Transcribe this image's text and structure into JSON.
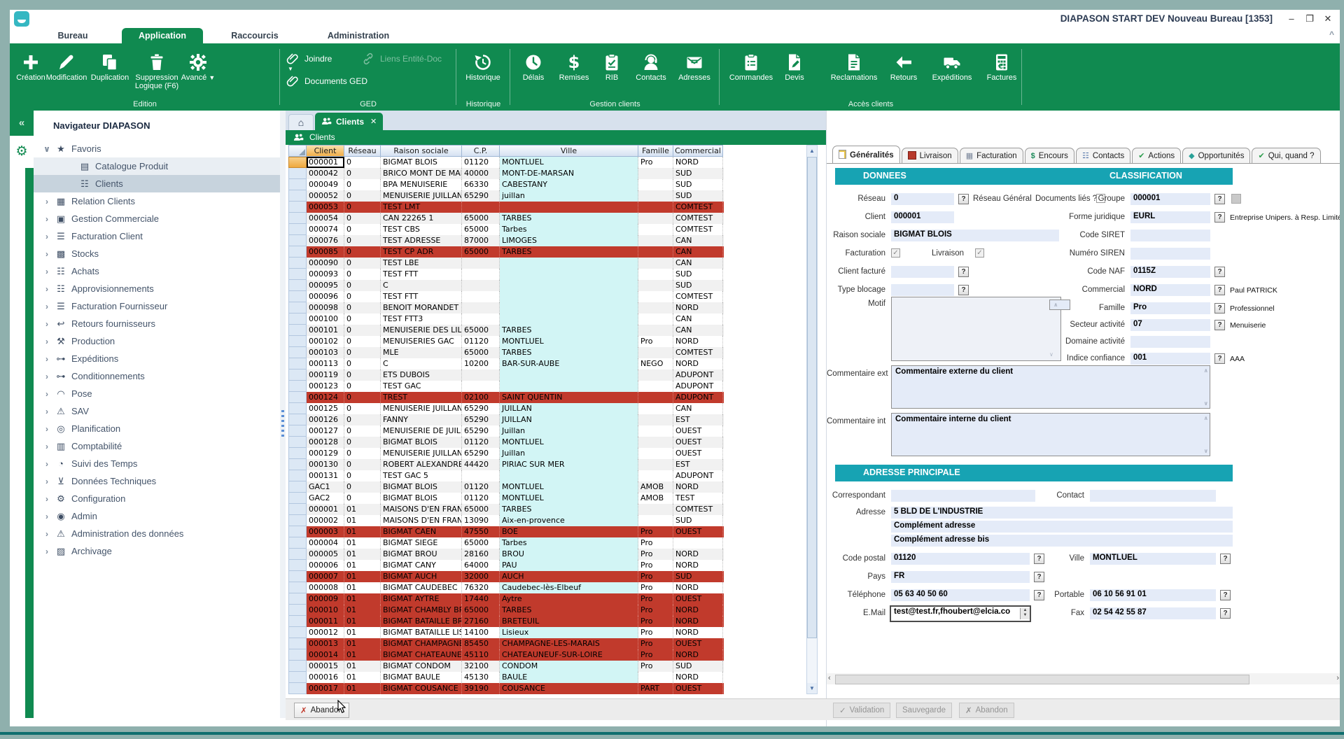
{
  "colors": {
    "green": "#108a50",
    "teal": "#17a3b3",
    "red": "#c13a2c",
    "desktop": "#8fb0ad",
    "field": "#e4ebf8",
    "ville": "#d2f5f5",
    "sort": "#f0ae49"
  },
  "window": {
    "title": "DIAPASON START DEV Nouveau Bureau [1353]",
    "minimize": "–",
    "restore": "❐",
    "close": "✕",
    "collapse_ribbon": "^"
  },
  "menu": {
    "items": [
      {
        "label": "Bureau",
        "active": false
      },
      {
        "label": "Application",
        "active": true
      },
      {
        "label": "Raccourcis",
        "active": false
      },
      {
        "label": "Administration",
        "active": false
      }
    ]
  },
  "ribbon": {
    "groups": [
      {
        "label": "Edition",
        "items": [
          {
            "label": "Création",
            "icon": "plus-icon",
            "kind": "big"
          },
          {
            "label": "Modification",
            "icon": "pencil-icon",
            "kind": "big"
          },
          {
            "label": "Duplication",
            "icon": "copy-icon",
            "kind": "big"
          },
          {
            "label": "Suppression\nLogique (F6)",
            "icon": "trash-icon",
            "kind": "big"
          },
          {
            "label": "Avancé",
            "icon": "gear-icon",
            "kind": "big",
            "caret": true
          }
        ]
      },
      {
        "label": "GED",
        "items": [
          {
            "label": "Joindre",
            "icon": "paperclip-icon",
            "kind": "small"
          },
          {
            "label": "Documents GED",
            "icon": "paperclip-icon",
            "kind": "small"
          },
          {
            "label": "Liens Entité-Doc",
            "icon": "link-icon",
            "kind": "small",
            "disabled": true
          }
        ]
      },
      {
        "label": "Historique",
        "items": [
          {
            "label": "Historique",
            "icon": "history-icon",
            "kind": "big"
          }
        ]
      },
      {
        "label": "Gestion clients",
        "items": [
          {
            "label": "Délais",
            "icon": "clock-icon",
            "kind": "big"
          },
          {
            "label": "Remises",
            "icon": "dollar-icon",
            "kind": "big"
          },
          {
            "label": "RIB",
            "icon": "clipboard-check-icon",
            "kind": "big"
          },
          {
            "label": "Contacts",
            "icon": "headset-icon",
            "kind": "big"
          },
          {
            "label": "Adresses",
            "icon": "envelope-icon",
            "kind": "big"
          }
        ]
      },
      {
        "label": "Accès clients",
        "items": [
          {
            "label": "Commandes",
            "icon": "clipboard-list-icon",
            "kind": "big"
          },
          {
            "label": "Devis",
            "icon": "doc-pencil-icon",
            "kind": "big"
          },
          {
            "label": "Reclamations",
            "icon": "doc-lines-icon",
            "kind": "big"
          },
          {
            "label": "Retours",
            "icon": "arrow-left-icon",
            "kind": "big"
          },
          {
            "label": "Expéditions",
            "icon": "truck-icon",
            "kind": "big"
          },
          {
            "label": "Factures",
            "icon": "calculator-euro-icon",
            "kind": "big"
          }
        ]
      }
    ]
  },
  "sidebar": {
    "title": "Navigateur DIAPASON",
    "collapse_glyph": "«",
    "items": [
      {
        "label": "Favoris",
        "icon": "star-icon",
        "level": 0,
        "chevron": "expanded"
      },
      {
        "label": "Catalogue Produit",
        "icon": "catalog-icon",
        "level": 1,
        "highlight": "soft"
      },
      {
        "label": "Clients",
        "icon": "people-icon",
        "level": 1,
        "highlight": "selected"
      },
      {
        "label": "Relation Clients",
        "icon": "calendar-icon",
        "level": 0,
        "chevron": "collapsed"
      },
      {
        "label": "Gestion Commerciale",
        "icon": "briefcase-icon",
        "level": 0,
        "chevron": "collapsed"
      },
      {
        "label": "Facturation Client",
        "icon": "calculator-icon",
        "level": 0,
        "chevron": "collapsed"
      },
      {
        "label": "Stocks",
        "icon": "stock-icon",
        "level": 0,
        "chevron": "collapsed"
      },
      {
        "label": "Achats",
        "icon": "cart-icon",
        "level": 0,
        "chevron": "collapsed"
      },
      {
        "label": "Approvisionnements",
        "icon": "supply-icon",
        "level": 0,
        "chevron": "collapsed"
      },
      {
        "label": "Facturation Fournisseur",
        "icon": "calculator-icon",
        "level": 0,
        "chevron": "collapsed"
      },
      {
        "label": "Retours fournisseurs",
        "icon": "return-icon",
        "level": 0,
        "chevron": "collapsed"
      },
      {
        "label": "Production",
        "icon": "hammer-icon",
        "level": 0,
        "chevron": "collapsed"
      },
      {
        "label": "Expéditions",
        "icon": "key-icon",
        "level": 0,
        "chevron": "collapsed"
      },
      {
        "label": "Conditionnements",
        "icon": "key-icon",
        "level": 0,
        "chevron": "collapsed"
      },
      {
        "label": "Pose",
        "icon": "helmet-icon",
        "level": 0,
        "chevron": "collapsed"
      },
      {
        "label": "SAV",
        "icon": "warning-icon",
        "level": 0,
        "chevron": "collapsed"
      },
      {
        "label": "Planification",
        "icon": "binoculars-icon",
        "level": 0,
        "chevron": "collapsed"
      },
      {
        "label": "Comptabilité",
        "icon": "chart-icon",
        "level": 0,
        "chevron": "collapsed"
      },
      {
        "label": "Suivi des Temps",
        "icon": "stopwatch-icon",
        "level": 0,
        "chevron": "collapsed"
      },
      {
        "label": "Données Techniques",
        "icon": "import-icon",
        "level": 0,
        "chevron": "collapsed"
      },
      {
        "label": "Configuration",
        "icon": "gear-tree-icon",
        "level": 0,
        "chevron": "collapsed"
      },
      {
        "label": "Admin",
        "icon": "admin-icon",
        "level": 0,
        "chevron": "collapsed"
      },
      {
        "label": "Administration des données",
        "icon": "warning-icon",
        "level": 0,
        "chevron": "collapsed"
      },
      {
        "label": "Archivage",
        "icon": "archive-icon",
        "level": 0,
        "chevron": "collapsed"
      }
    ]
  },
  "main": {
    "tab": {
      "label": "Clients",
      "close": "✕",
      "more": "»"
    },
    "bar_title": "Clients",
    "bar_icons": {
      "pin": "→|",
      "import": "⊻"
    }
  },
  "grid": {
    "columns": [
      "Client",
      "Réseau",
      "Raison sociale",
      "C.P.",
      "Ville",
      "Famille",
      "Commercial"
    ],
    "abandon_label": "Abandon",
    "rows": [
      [
        "000001",
        "0",
        "BIGMAT BLOIS",
        "01120",
        "MONTLUEL",
        "Pro",
        "NORD",
        "current"
      ],
      [
        "000042",
        "0",
        "BRICO MONT DE MARSA",
        "40000",
        "MONT-DE-MARSAN",
        "",
        "SUD",
        ""
      ],
      [
        "000049",
        "0",
        "BPA MENUISERIE",
        "66330",
        "CABESTANY",
        "",
        "SUD",
        ""
      ],
      [
        "000052",
        "0",
        "MENUISERIE JUILLAN",
        "65290",
        "juillan",
        "",
        "SUD",
        ""
      ],
      [
        "000053",
        "0",
        "TEST LMT",
        "",
        "",
        "",
        "COMTEST",
        "red"
      ],
      [
        "000054",
        "0",
        "CAN 22265 1",
        "65000",
        "TARBES",
        "",
        "COMTEST",
        ""
      ],
      [
        "000074",
        "0",
        "TEST CBS",
        "65000",
        "Tarbes",
        "",
        "COMTEST",
        ""
      ],
      [
        "000076",
        "0",
        "TEST ADRESSE",
        "87000",
        "LIMOGES",
        "",
        "CAN",
        ""
      ],
      [
        "000085",
        "0",
        "TEST CP ADR",
        "65000",
        "TARBES",
        "",
        "CAN",
        "red"
      ],
      [
        "000090",
        "0",
        "TEST LBE",
        "",
        "",
        "",
        "CAN",
        ""
      ],
      [
        "000093",
        "0",
        "TEST FTT",
        "",
        "",
        "",
        "SUD",
        ""
      ],
      [
        "000095",
        "0",
        "C",
        "",
        "",
        "",
        "SUD",
        ""
      ],
      [
        "000096",
        "0",
        "TEST FTT",
        "",
        "",
        "",
        "COMTEST",
        ""
      ],
      [
        "000098",
        "0",
        "BENOIT MORANDET",
        "",
        "",
        "",
        "NORD",
        ""
      ],
      [
        "000100",
        "0",
        "TEST FTT3",
        "",
        "",
        "",
        "CAN",
        ""
      ],
      [
        "000101",
        "0",
        "MENUISERIE DES LILAS",
        "65000",
        "TARBES",
        "",
        "CAN",
        ""
      ],
      [
        "000102",
        "0",
        "MENUISERIES GAC",
        "01120",
        "MONTLUEL",
        "Pro",
        "NORD",
        ""
      ],
      [
        "000103",
        "0",
        "MLE",
        "65000",
        "TARBES",
        "",
        "COMTEST",
        ""
      ],
      [
        "000113",
        "0",
        "C",
        "10200",
        "BAR-SUR-AUBE",
        "NEGO",
        "NORD",
        ""
      ],
      [
        "000119",
        "0",
        "ETS DUBOIS",
        "",
        "",
        "",
        "ADUPONT",
        ""
      ],
      [
        "000123",
        "0",
        "TEST GAC",
        "",
        "",
        "",
        "ADUPONT",
        ""
      ],
      [
        "000124",
        "0",
        "TREST",
        "02100",
        "SAINT QUENTIN",
        "",
        "ADUPONT",
        "red"
      ],
      [
        "000125",
        "0",
        "MENUISERIE JUILLANAIS",
        "65290",
        "JUILLAN",
        "",
        "CAN",
        ""
      ],
      [
        "000126",
        "0",
        "FANNY",
        "65290",
        "JUILLAN",
        "",
        "EST",
        ""
      ],
      [
        "000127",
        "0",
        "MENUISERIE DE JUILLAN",
        "65290",
        "Juillan",
        "",
        "OUEST",
        ""
      ],
      [
        "000128",
        "0",
        "BIGMAT BLOIS",
        "01120",
        "MONTLUEL",
        "",
        "OUEST",
        ""
      ],
      [
        "000129",
        "0",
        "MENUISERIE JUILLANAIS",
        "65290",
        "Juillan",
        "",
        "OUEST",
        ""
      ],
      [
        "000130",
        "0",
        "ROBERT ALEXANDRE ET",
        "44420",
        "PIRIAC SUR MER",
        "",
        "EST",
        ""
      ],
      [
        "000131",
        "0",
        "TEST GAC 5",
        "",
        "",
        "",
        "ADUPONT",
        ""
      ],
      [
        "GAC1",
        "0",
        "BIGMAT BLOIS",
        "01120",
        "MONTLUEL",
        "AMOB",
        "NORD",
        ""
      ],
      [
        "GAC2",
        "0",
        "BIGMAT BLOIS",
        "01120",
        "MONTLUEL",
        "AMOB",
        "TEST",
        ""
      ],
      [
        "000001",
        "01",
        "MAISONS D'EN FRANCE",
        "65000",
        "TARBES",
        "",
        "COMTEST",
        ""
      ],
      [
        "000002",
        "01",
        "MAISONS D'EN FRANCE",
        "13090",
        "Aix-en-provence",
        "",
        "SUD",
        ""
      ],
      [
        "000003",
        "01",
        "BIGMAT CAEN",
        "47550",
        "BOE",
        "Pro",
        "OUEST",
        "red"
      ],
      [
        "000004",
        "01",
        "BIGMAT SIEGE",
        "65000",
        "Tarbes",
        "Pro",
        "",
        ""
      ],
      [
        "000005",
        "01",
        "BIGMAT BROU",
        "28160",
        "BROU",
        "Pro",
        "NORD",
        ""
      ],
      [
        "000006",
        "01",
        "BIGMAT CANY",
        "64000",
        "PAU",
        "Pro",
        "NORD",
        ""
      ],
      [
        "000007",
        "01",
        "BIGMAT AUCH",
        "32000",
        "AUCH",
        "Pro",
        "SUD",
        "red"
      ],
      [
        "000008",
        "01",
        "BIGMAT CAUDEBEC",
        "76320",
        "Caudebec-lès-Elbeuf",
        "Pro",
        "NORD",
        ""
      ],
      [
        "000009",
        "01",
        "BIGMAT AYTRE",
        "17440",
        "Aytre",
        "Pro",
        "OUEST",
        "red"
      ],
      [
        "000010",
        "01",
        "BIGMAT CHAMBLY BROC",
        "65000",
        "TARBES",
        "Pro",
        "NORD",
        "red"
      ],
      [
        "000011",
        "01",
        "BIGMAT BATAILLE BRET",
        "27160",
        "BRETEUIL",
        "Pro",
        "NORD",
        "red"
      ],
      [
        "000012",
        "01",
        "BIGMAT BATAILLE LISIE",
        "14100",
        "Lisieux",
        "Pro",
        "NORD",
        ""
      ],
      [
        "000013",
        "01",
        "BIGMAT CHAMPAGNE-LE",
        "85450",
        "CHAMPAGNE-LES-MARAIS",
        "Pro",
        "OUEST",
        "red"
      ],
      [
        "000014",
        "01",
        "BIGMAT CHATEAUNEUF",
        "45110",
        "CHATEAUNEUF-SUR-LOIRE",
        "Pro",
        "NORD",
        "red"
      ],
      [
        "000015",
        "01",
        "BIGMAT CONDOM",
        "32100",
        "CONDOM",
        "Pro",
        "SUD",
        ""
      ],
      [
        "000016",
        "01",
        "BIGMAT BAULE",
        "45130",
        "BAULE",
        "",
        "NORD",
        ""
      ],
      [
        "000017",
        "01",
        "BIGMAT COUSANCE",
        "39190",
        "COUSANCE",
        "PART",
        "OUEST",
        "red"
      ]
    ]
  },
  "panel": {
    "tabs": [
      {
        "label": "Généralités",
        "icon": "doc",
        "active": true
      },
      {
        "label": "Livraison",
        "icon": "redbox",
        "active": false
      },
      {
        "label": "Facturation",
        "icon": "calc",
        "active": false
      },
      {
        "label": "Encours",
        "icon": "dollar",
        "active": false
      },
      {
        "label": "Contacts",
        "icon": "people",
        "active": false
      },
      {
        "label": "Actions",
        "icon": "check",
        "active": false
      },
      {
        "label": "Opportunités",
        "icon": "gem",
        "active": false
      },
      {
        "label": "Qui, quand ?",
        "icon": "check",
        "active": false
      }
    ],
    "sections": {
      "donnees": "DONNEES",
      "classification": "CLASSIFICATION",
      "adresse": "ADRESSE PRINCIPALE"
    },
    "fields": {
      "reseau": {
        "label": "Réseau",
        "value": "0"
      },
      "reseau_general": "Réseau Général",
      "documents_lies": "Documents liés ?",
      "client": {
        "label": "Client",
        "value": "000001"
      },
      "raison_sociale": {
        "label": "Raison sociale",
        "value": "BIGMAT BLOIS"
      },
      "facturation": {
        "label": "Facturation"
      },
      "livraison": {
        "label": "Livraison"
      },
      "client_facture": {
        "label": "Client facturé",
        "value": ""
      },
      "type_blocage": {
        "label": "Type blocage",
        "value": ""
      },
      "motif": {
        "label": "Motif",
        "value": ""
      },
      "commentaire_ext": {
        "label": "Commentaire ext",
        "value": "Commentaire externe du client"
      },
      "commentaire_int": {
        "label": "Commentaire int",
        "value": "Commentaire interne du client"
      },
      "groupe": {
        "label": "Groupe",
        "value": "000001"
      },
      "forme_juridique": {
        "label": "Forme juridique",
        "value": "EURL",
        "desc": "Entreprise Unipers. à Resp. Limitée"
      },
      "code_siret": {
        "label": "Code SIRET",
        "value": ""
      },
      "numero_siren": {
        "label": "Numéro SIREN",
        "value": ""
      },
      "code_naf": {
        "label": "Code NAF",
        "value": "0115Z"
      },
      "commercial": {
        "label": "Commercial",
        "value": "NORD",
        "desc": "Paul PATRICK"
      },
      "famille": {
        "label": "Famille",
        "value": "Pro",
        "desc": "Professionnel"
      },
      "secteur_activite": {
        "label": "Secteur activité",
        "value": "07",
        "desc": "Menuiserie"
      },
      "domaine_activite": {
        "label": "Domaine activité",
        "value": ""
      },
      "indice_confiance": {
        "label": "Indice confiance",
        "value": "001",
        "desc": "AAA"
      },
      "correspondant": {
        "label": "Correspondant",
        "value": ""
      },
      "contact": {
        "label": "Contact",
        "value": ""
      },
      "adresse": {
        "label": "Adresse",
        "line1": "5 BLD DE L'INDUSTRIE",
        "line2": "Complément adresse",
        "line3": "Complément adresse bis"
      },
      "code_postal": {
        "label": "Code postal",
        "value": "01120"
      },
      "ville": {
        "label": "Ville",
        "value": "MONTLUEL"
      },
      "pays": {
        "label": "Pays",
        "value": "FR"
      },
      "telephone": {
        "label": "Téléphone",
        "value": "05 63 40 50 60"
      },
      "portable": {
        "label": "Portable",
        "value": "06 10 56 91 01"
      },
      "email": {
        "label": "E.Mail",
        "value": "test@test.fr,fhoubert@elcia.co"
      },
      "fax": {
        "label": "Fax",
        "value": "02 54 42 55 87"
      }
    },
    "footer": {
      "validation": "Validation",
      "sauvegarde": "Sauvegarde",
      "abandon": "Abandon"
    }
  }
}
